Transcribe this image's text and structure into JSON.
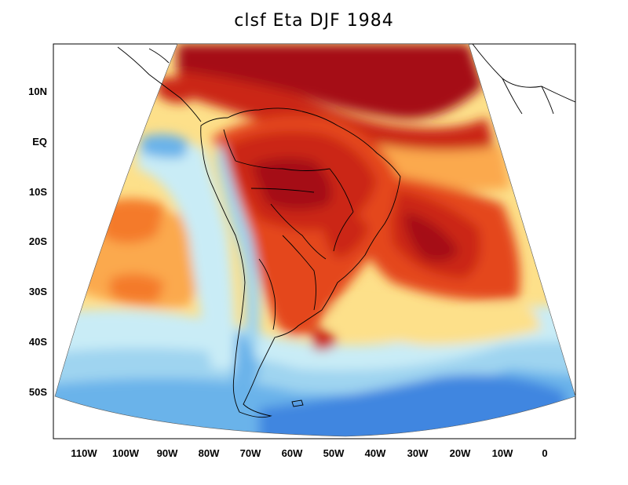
{
  "title": "clsf Eta DJF 1984",
  "axes": {
    "x_ticks": [
      "110W",
      "100W",
      "90W",
      "80W",
      "70W",
      "60W",
      "50W",
      "40W",
      "30W",
      "20W",
      "10W",
      "0"
    ],
    "y_ticks": [
      "10N",
      "EQ",
      "10S",
      "20S",
      "30S",
      "40S",
      "50S"
    ]
  },
  "colors": {
    "deep_red": "#a50f15",
    "red": "#cb2514",
    "red_orange": "#e4461a",
    "orange": "#f47a2a",
    "light_orange": "#fba94d",
    "pale_yellow": "#fde08a",
    "cream": "#fff7c2",
    "pale_blue": "#c9ecf6",
    "light_blue": "#9fd4f0",
    "mid_blue": "#6bb3ea",
    "blue": "#3f86e0",
    "land_outline": "#000000"
  }
}
